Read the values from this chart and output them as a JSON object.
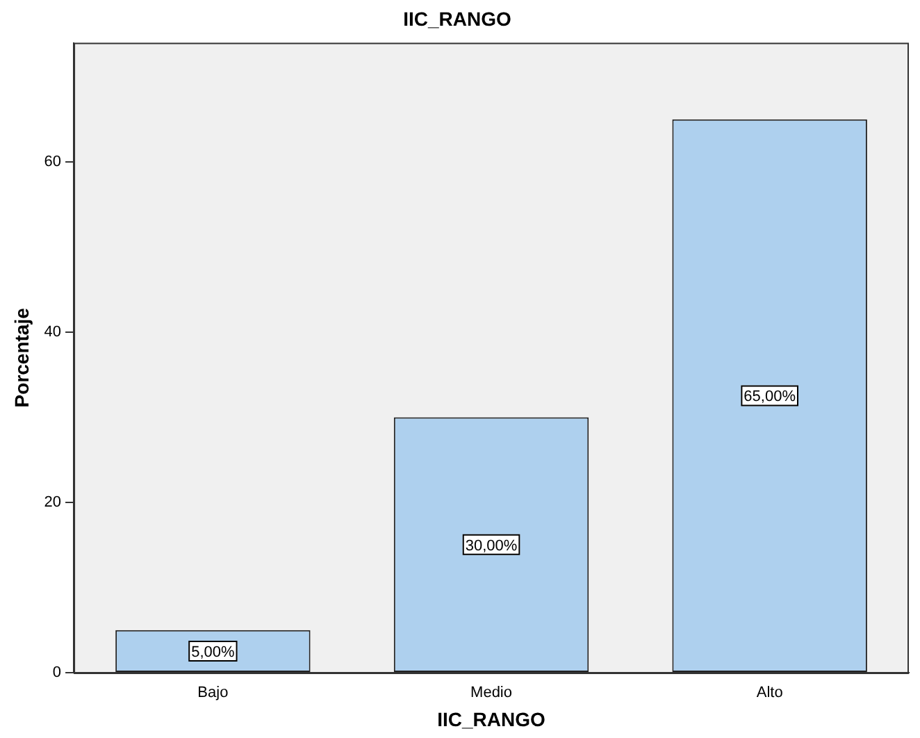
{
  "chart_data": {
    "type": "bar",
    "title": "IIC_RANGO",
    "xlabel": "IIC_RANGO",
    "ylabel": "Porcentaje",
    "categories": [
      "Bajo",
      "Medio",
      "Alto"
    ],
    "values": [
      5,
      30,
      65
    ],
    "value_labels": [
      "5,00%",
      "30,00%",
      "65,00%"
    ],
    "color": "#aed0ee",
    "ylim": [
      0,
      74
    ],
    "yticks": [
      0,
      20,
      40,
      60
    ],
    "grid": false,
    "legend": false
  }
}
